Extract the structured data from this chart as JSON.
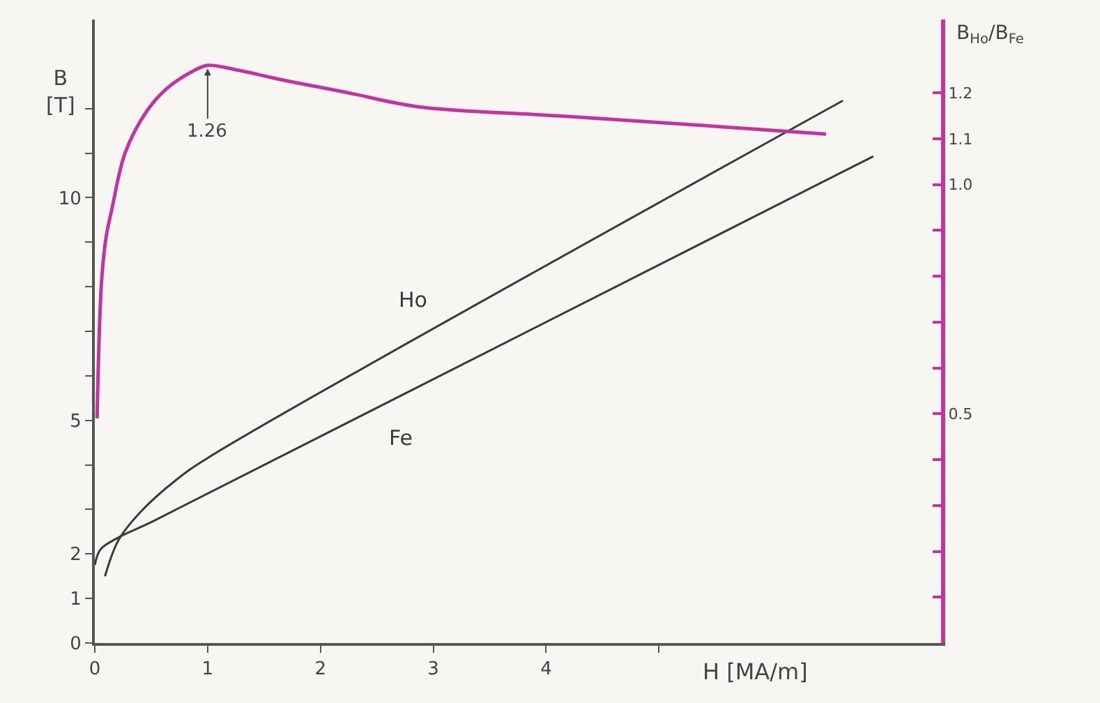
{
  "chart_data": {
    "type": "line",
    "xlabel": "H [MA/m]",
    "ylabel": "B [T]",
    "y2label": "B$_{Ho}$/B$_{Fe}$",
    "xlim": [
      0,
      7.5
    ],
    "xticks": [
      0,
      1,
      2,
      3,
      4,
      {
        "value": 5,
        "label": null
      }
    ],
    "ylim": [
      0,
      14
    ],
    "yticks": [
      0,
      1,
      2,
      {
        "value": 3,
        "label": null
      },
      {
        "value": 4,
        "label": null
      },
      5,
      {
        "value": 6,
        "label": null
      },
      {
        "value": 7,
        "label": null
      },
      {
        "value": 8,
        "label": null
      },
      {
        "value": 9,
        "label": null
      },
      10,
      {
        "value": 11,
        "label": null
      },
      {
        "value": 12,
        "label": null
      }
    ],
    "y2lim": [
      0,
      1.36
    ],
    "y2ticks": [
      {
        "value": 0,
        "label": null
      },
      {
        "value": 0.1,
        "label": null
      },
      {
        "value": 0.2,
        "label": null
      },
      {
        "value": 0.3,
        "label": null
      },
      {
        "value": 0.4,
        "label": null
      },
      0.5,
      {
        "value": 0.6,
        "label": null
      },
      {
        "value": 0.7,
        "label": null
      },
      {
        "value": 0.8,
        "label": null
      },
      {
        "value": 0.9,
        "label": null
      },
      {
        "value": 1,
        "label": "1.0"
      },
      1.1,
      1.2
    ],
    "grid": false,
    "legend": false,
    "line_style": "solid",
    "series": [
      {
        "name": "Ho",
        "color": "#3a3a3a",
        "x": [
          0.09,
          0.21,
          0.4,
          0.73,
          1.01,
          6.63
        ],
        "values": [
          1.5,
          2.31,
          2.93,
          3.68,
          4.17,
          12.18
        ]
      },
      {
        "name": "Fe",
        "color": "#3a3a3a",
        "x": [
          0,
          0.05,
          0.21,
          0.52,
          6.9
        ],
        "values": [
          1.75,
          2.1,
          2.37,
          2.74,
          10.93
        ]
      },
      {
        "color": "#c2359f",
        "axis": "y2",
        "x": [
          0.02,
          0.06,
          0.1,
          0.15,
          0.27,
          0.46,
          0.64,
          0.89,
          1.0,
          1.26,
          1.63,
          2.25,
          2.86,
          4.1,
          5.33,
          6.48
        ],
        "values": [
          0.49,
          0.79,
          0.885,
          0.945,
          1.07,
          1.16,
          1.21,
          1.25,
          1.26,
          1.25,
          1.23,
          1.2,
          1.17,
          1.15,
          1.13,
          1.11
        ]
      }
    ],
    "annotations": [
      {
        "text": "1.26",
        "x": 1.0,
        "y": 12.9
      }
    ]
  }
}
